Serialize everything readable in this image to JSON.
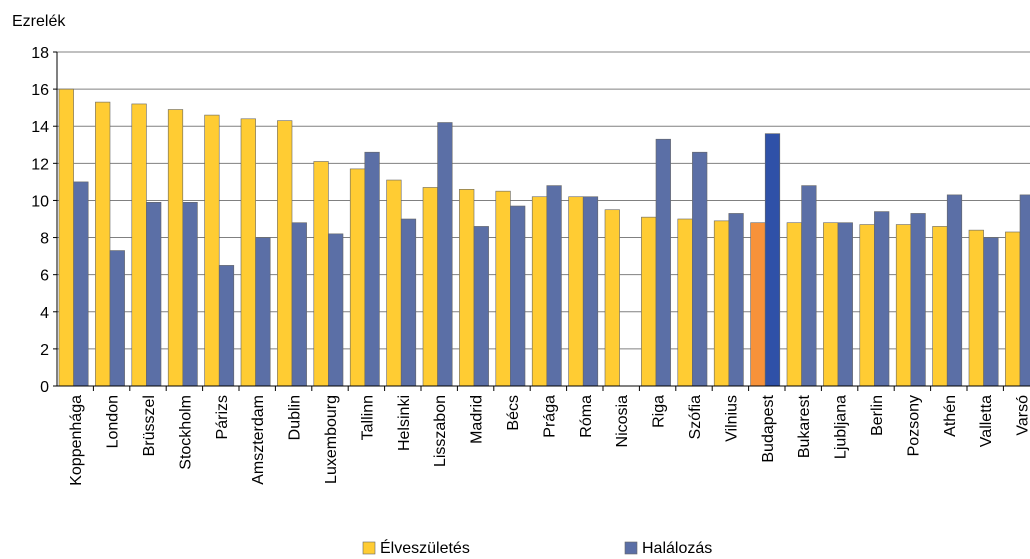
{
  "chart_data": {
    "type": "bar",
    "ylabel": "Ezrelék",
    "ylim": [
      0,
      18
    ],
    "yticks": [
      0,
      2,
      4,
      6,
      8,
      10,
      12,
      14,
      16,
      18
    ],
    "grid": true,
    "legend_position": "bottom",
    "categories": [
      "Koppenhága",
      "London",
      "Brüsszel",
      "Stockholm",
      "Párizs",
      "Amszterdam",
      "Dublin",
      "Luxembourg",
      "Tallinn",
      "Helsinki",
      "Lisszabon",
      "Madrid",
      "Bécs",
      "Prága",
      "Róma",
      "Nicosia",
      "Riga",
      "Szófia",
      "Vilnius",
      "Budapest",
      "Bukarest",
      "Ljubljana",
      "Berlin",
      "Pozsony",
      "Athén",
      "Valletta",
      "Varsó"
    ],
    "highlight_category": "Budapest",
    "series": [
      {
        "name": "Élveszületés",
        "color": "#FFCC33",
        "highlight_color": "#F7923A",
        "values": [
          16.0,
          15.3,
          15.2,
          14.9,
          14.6,
          14.4,
          14.3,
          12.1,
          11.7,
          11.1,
          10.7,
          10.6,
          10.5,
          10.2,
          10.2,
          9.5,
          9.1,
          9.0,
          8.9,
          8.8,
          8.8,
          8.8,
          8.7,
          8.7,
          8.6,
          8.4,
          8.3
        ]
      },
      {
        "name": "Halálozás",
        "color": "#5B6FA6",
        "highlight_color": "#2F51A8",
        "values": [
          11.0,
          7.3,
          9.9,
          9.9,
          6.5,
          8.0,
          8.8,
          8.2,
          12.6,
          9.0,
          14.2,
          8.6,
          9.7,
          10.8,
          10.2,
          0,
          13.3,
          12.6,
          9.3,
          13.6,
          10.8,
          8.8,
          9.4,
          9.3,
          10.3,
          8.0,
          10.3
        ]
      }
    ]
  }
}
